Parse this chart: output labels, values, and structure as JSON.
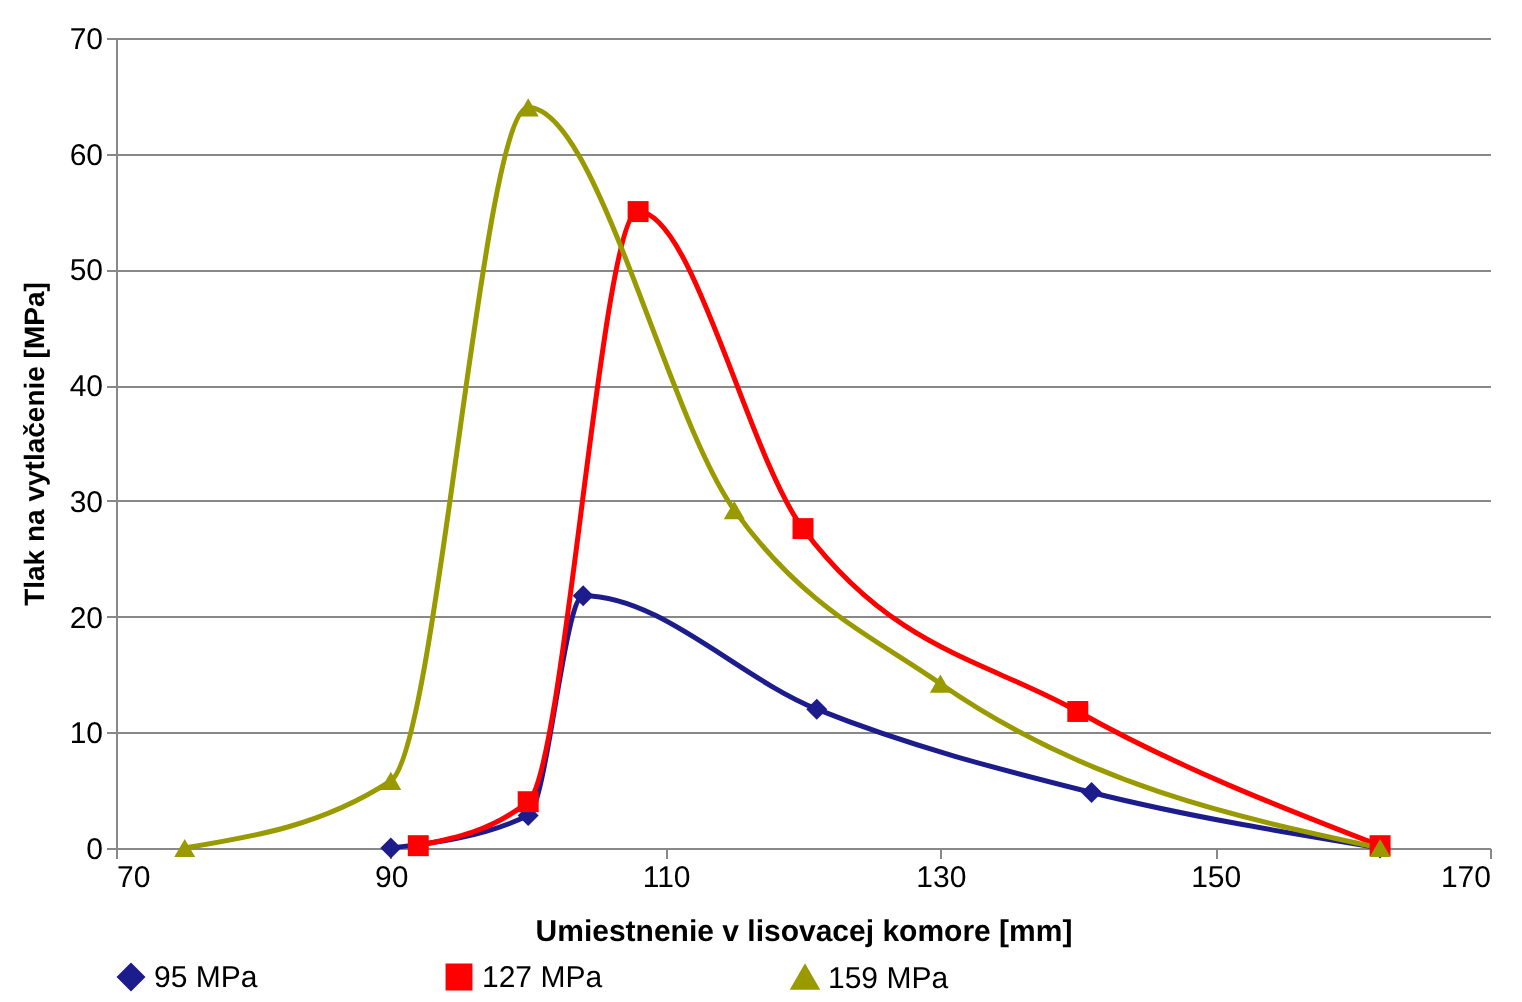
{
  "chart_data": {
    "type": "line",
    "xlabel": "Umiestnenie v lisovacej komore [mm]",
    "ylabel": "Tlak na vytlačenie [MPa]",
    "xlim": [
      70,
      170
    ],
    "xticks": [
      70,
      90,
      110,
      130,
      150,
      170
    ],
    "ylim": [
      0,
      70
    ],
    "yticks": [
      0,
      10,
      20,
      30,
      40,
      50,
      60,
      70
    ],
    "grid": "y",
    "legend": "bottom",
    "series": [
      {
        "name": "95 MPa",
        "color": "#1c1c8c",
        "marker": "diamond",
        "x": [
          90,
          100,
          104,
          121,
          141,
          162
        ],
        "values": [
          0,
          2.8,
          21.8,
          12,
          4.8,
          0
        ]
      },
      {
        "name": "127 MPa",
        "color": "#ff0000",
        "marker": "square",
        "x": [
          92,
          100,
          108,
          120,
          140,
          162
        ],
        "values": [
          0.2,
          4,
          55,
          27.6,
          11.8,
          0.2
        ]
      },
      {
        "name": "159 MPa",
        "color": "#999900",
        "marker": "triangle",
        "x": [
          75,
          90,
          100,
          115,
          130,
          162
        ],
        "values": [
          0,
          5.8,
          64,
          29.2,
          14.2,
          0
        ]
      }
    ]
  }
}
